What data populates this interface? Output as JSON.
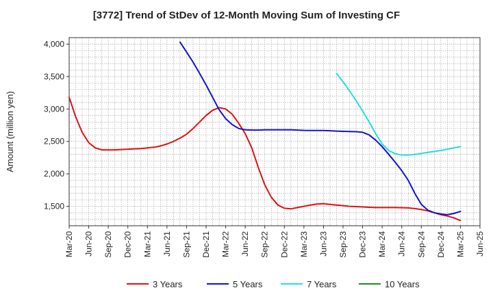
{
  "chart_data": {
    "type": "line",
    "title": "[3772]  Trend of StDev of 12-Month Moving Sum of Investing CF",
    "ylabel": "Amount (million yen)",
    "xlabel": "",
    "ylim": [
      1200,
      4100
    ],
    "yticks": [
      1500,
      2000,
      2500,
      3000,
      3500,
      4000
    ],
    "ytick_labels": [
      "1,500",
      "2,000",
      "2,500",
      "3,000",
      "3,500",
      "4,000"
    ],
    "x_start": "2020-03",
    "x_end": "2025-06",
    "x_tick_labels": [
      "Mar-20",
      "Jun-20",
      "Sep-20",
      "Dec-20",
      "Mar-21",
      "Jun-21",
      "Sep-21",
      "Dec-21",
      "Mar-22",
      "Jun-22",
      "Sep-22",
      "Dec-22",
      "Mar-23",
      "Jun-23",
      "Sep-23",
      "Dec-23",
      "Mar-24",
      "Jun-24",
      "Sep-24",
      "Dec-24",
      "Mar-25",
      "Jun-25"
    ],
    "grid": true,
    "legend_position": "bottom",
    "series": [
      {
        "name": "3 Years",
        "color": "#dd1111",
        "x": [
          "2020-03",
          "2020-04",
          "2020-05",
          "2020-06",
          "2020-07",
          "2020-08",
          "2020-09",
          "2020-10",
          "2020-11",
          "2020-12",
          "2021-01",
          "2021-02",
          "2021-03",
          "2021-04",
          "2021-05",
          "2021-06",
          "2021-07",
          "2021-08",
          "2021-09",
          "2021-10",
          "2021-11",
          "2021-12",
          "2022-01",
          "2022-02",
          "2022-03",
          "2022-04",
          "2022-05",
          "2022-06",
          "2022-07",
          "2022-08",
          "2022-09",
          "2022-10",
          "2022-11",
          "2022-12",
          "2023-01",
          "2023-02",
          "2023-03",
          "2023-04",
          "2023-05",
          "2023-06",
          "2023-07",
          "2023-08",
          "2023-09",
          "2023-10",
          "2023-11",
          "2023-12",
          "2024-01",
          "2024-02",
          "2024-03",
          "2024-04",
          "2024-05",
          "2024-06",
          "2024-07",
          "2024-08",
          "2024-09",
          "2024-10",
          "2024-11",
          "2024-12",
          "2025-01",
          "2025-02",
          "2025-03"
        ],
        "values": [
          3180,
          2880,
          2640,
          2480,
          2400,
          2370,
          2370,
          2370,
          2375,
          2380,
          2385,
          2390,
          2400,
          2410,
          2430,
          2460,
          2500,
          2550,
          2610,
          2700,
          2800,
          2900,
          2980,
          3020,
          3000,
          2920,
          2780,
          2620,
          2400,
          2100,
          1830,
          1640,
          1520,
          1470,
          1460,
          1480,
          1500,
          1520,
          1535,
          1540,
          1530,
          1520,
          1510,
          1500,
          1495,
          1490,
          1485,
          1480,
          1480,
          1480,
          1480,
          1478,
          1475,
          1465,
          1450,
          1430,
          1400,
          1370,
          1350,
          1320,
          1280
        ]
      },
      {
        "name": "5 Years",
        "color": "#1111cc",
        "x": [
          "2021-08",
          "2021-09",
          "2021-10",
          "2021-11",
          "2021-12",
          "2022-01",
          "2022-02",
          "2022-03",
          "2022-04",
          "2022-05",
          "2022-06",
          "2022-07",
          "2022-08",
          "2022-09",
          "2022-10",
          "2022-11",
          "2022-12",
          "2023-01",
          "2023-02",
          "2023-03",
          "2023-04",
          "2023-05",
          "2023-06",
          "2023-07",
          "2023-08",
          "2023-09",
          "2023-10",
          "2023-11",
          "2023-12",
          "2024-01",
          "2024-02",
          "2024-03",
          "2024-04",
          "2024-05",
          "2024-06",
          "2024-07",
          "2024-08",
          "2024-09",
          "2024-10",
          "2024-11",
          "2024-12",
          "2025-01",
          "2025-02",
          "2025-03"
        ],
        "values": [
          4030,
          3880,
          3720,
          3550,
          3370,
          3180,
          2990,
          2850,
          2760,
          2700,
          2680,
          2675,
          2675,
          2678,
          2680,
          2680,
          2680,
          2678,
          2675,
          2670,
          2668,
          2668,
          2668,
          2665,
          2660,
          2655,
          2652,
          2650,
          2640,
          2600,
          2520,
          2420,
          2300,
          2180,
          2050,
          1900,
          1700,
          1530,
          1440,
          1400,
          1380,
          1370,
          1390,
          1420
        ]
      },
      {
        "name": "7 Years",
        "color": "#22dddd",
        "x": [
          "2023-08",
          "2023-09",
          "2023-10",
          "2023-11",
          "2023-12",
          "2024-01",
          "2024-02",
          "2024-03",
          "2024-04",
          "2024-05",
          "2024-06",
          "2024-07",
          "2024-08",
          "2024-09",
          "2024-10",
          "2024-11",
          "2024-12",
          "2025-01",
          "2025-02",
          "2025-03"
        ],
        "values": [
          3550,
          3420,
          3280,
          3130,
          2970,
          2800,
          2620,
          2460,
          2360,
          2310,
          2290,
          2290,
          2300,
          2315,
          2330,
          2345,
          2360,
          2380,
          2400,
          2420
        ]
      },
      {
        "name": "10 Years",
        "color": "#228822",
        "x": [],
        "values": []
      }
    ]
  }
}
